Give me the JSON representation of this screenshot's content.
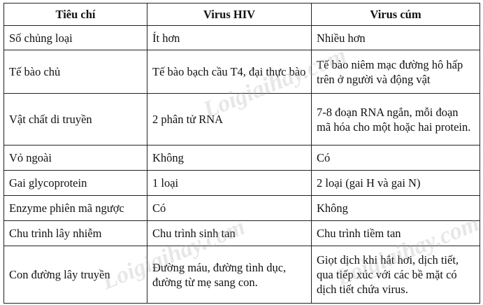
{
  "headers": [
    "Tiêu chí",
    "Virus HIV",
    "Virus cúm"
  ],
  "rows": [
    [
      "Số chủng loại",
      "Ít hơn",
      "Nhiều hơn"
    ],
    [
      "Tế bào chủ",
      "Tế bào bạch cầu T4, đại thực bào",
      "Tế bào niêm mạc đường hô hấp trên ở người và động vật"
    ],
    [
      "Vật chất di truyền",
      "2 phân tử RNA",
      "7-8 đoạn RNA ngắn, mỗi đoạn mã hóa cho một hoặc hai protein."
    ],
    [
      "Vỏ ngoài",
      "Không",
      "Có"
    ],
    [
      "Gai glycoprotein",
      "1 loại",
      "2 loại (gai H và gai N)"
    ],
    [
      "Enzyme phiên mã ngược",
      "Có",
      "Không"
    ],
    [
      "Chu trình lây nhiễm",
      "Chu trình sinh tan",
      "Chu trình tiềm tan"
    ],
    [
      "Con đường lây truyền",
      "Đường máu, đường tình dục, đường từ mẹ sang con.",
      "Giọt dịch khi hắt hơi, dịch tiết, qua tiếp xúc với các bề mặt có dịch tiết chứa virus."
    ]
  ],
  "watermark": "Loigiaihay.com"
}
